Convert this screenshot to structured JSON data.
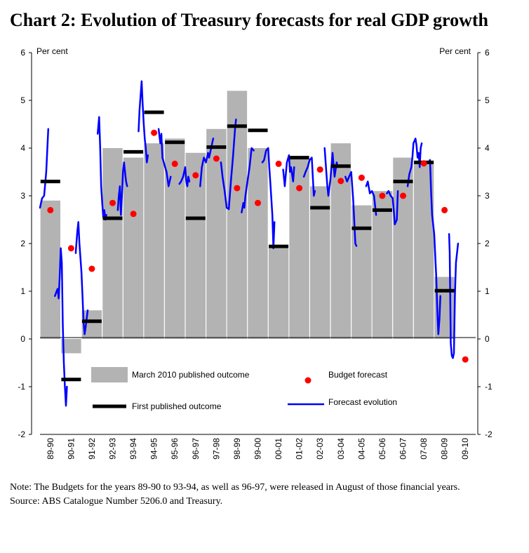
{
  "title": "Chart 2:  Evolution of Treasury forecasts for real GDP growth",
  "note": "Note: The Budgets for the years 89-90 to 93-94, as well as 96-97, were released in August of those financial years.",
  "source": "Source:  ABS Catalogue Number 5206.0 and Treasury.",
  "colors": {
    "bar": "#b3b3b3",
    "first_published": "#000000",
    "budget_forecast": "#ff0000",
    "forecast_evolution": "#0000ff"
  },
  "chart_data": {
    "type": "bar",
    "ylabel_left": "Per cent",
    "ylabel_right": "Per cent",
    "ylim": [
      -2,
      6
    ],
    "yticks": [
      -2,
      -1,
      0,
      1,
      2,
      3,
      4,
      5,
      6
    ],
    "grid": false,
    "legend_position": "bottom",
    "categories": [
      "89-90",
      "90-91",
      "91-92",
      "92-93",
      "93-94",
      "94-95",
      "95-96",
      "96-97",
      "97-98",
      "98-99",
      "99-00",
      "00-01",
      "01-02",
      "02-03",
      "03-04",
      "04-05",
      "05-06",
      "06-07",
      "07-08",
      "08-09",
      "09-10"
    ],
    "series": [
      {
        "name": "March 2010 published outcome",
        "kind": "bar",
        "values": [
          2.9,
          -0.3,
          0.6,
          4.0,
          3.8,
          4.1,
          4.2,
          3.9,
          4.4,
          5.2,
          4.0,
          1.9,
          3.8,
          3.2,
          4.1,
          2.8,
          3.1,
          3.8,
          3.7,
          1.3,
          null
        ]
      },
      {
        "name": "First published outcome",
        "kind": "dash",
        "values": [
          3.3,
          -0.85,
          0.37,
          2.53,
          3.92,
          4.75,
          4.12,
          2.53,
          4.02,
          4.46,
          4.37,
          1.94,
          3.8,
          2.75,
          3.62,
          2.32,
          2.7,
          3.3,
          3.7,
          1.01,
          null
        ]
      },
      {
        "name": "Budget forecast",
        "kind": "dot",
        "values": [
          2.7,
          1.9,
          1.47,
          2.85,
          2.62,
          4.32,
          3.67,
          3.43,
          3.78,
          3.16,
          2.85,
          3.67,
          3.16,
          3.55,
          3.31,
          3.38,
          3.0,
          3.0,
          3.68,
          2.7,
          -0.43
        ]
      },
      {
        "name": "Forecast evolution",
        "kind": "line",
        "segments": [
          [
            [
              0.0,
              2.75
            ],
            [
              0.1,
              2.95
            ],
            [
              0.2,
              3.0
            ],
            [
              0.3,
              3.5
            ],
            [
              0.4,
              4.4
            ]
          ],
          [
            [
              0.72,
              0.9
            ],
            [
              0.8,
              1.0
            ],
            [
              0.85,
              1.05
            ],
            [
              0.9,
              0.85
            ],
            [
              0.95,
              1.3
            ],
            [
              1.0,
              1.9
            ],
            [
              1.05,
              1.6
            ],
            [
              1.1,
              0.3
            ],
            [
              1.15,
              -0.5
            ],
            [
              1.2,
              -1.0
            ],
            [
              1.25,
              -1.4
            ],
            [
              1.3,
              -1.0
            ]
          ],
          [
            [
              1.72,
              1.8
            ],
            [
              1.8,
              2.25
            ],
            [
              1.85,
              2.45
            ],
            [
              1.9,
              2.0
            ],
            [
              2.0,
              1.4
            ],
            [
              2.05,
              0.9
            ],
            [
              2.1,
              0.35
            ],
            [
              2.15,
              0.1
            ],
            [
              2.2,
              0.25
            ],
            [
              2.3,
              0.6
            ]
          ],
          [
            [
              2.78,
              4.3
            ],
            [
              2.85,
              4.65
            ],
            [
              2.9,
              4.0
            ],
            [
              2.95,
              3.2
            ],
            [
              3.0,
              2.85
            ],
            [
              3.05,
              2.55
            ],
            [
              3.1,
              2.7
            ],
            [
              3.15,
              2.5
            ],
            [
              3.2,
              2.6
            ]
          ],
          [
            [
              3.75,
              2.7
            ],
            [
              3.8,
              3.0
            ],
            [
              3.85,
              3.2
            ],
            [
              3.9,
              2.6
            ],
            [
              3.95,
              3.0
            ],
            [
              4.0,
              3.5
            ],
            [
              4.05,
              3.7
            ],
            [
              4.1,
              3.5
            ],
            [
              4.15,
              3.3
            ],
            [
              4.2,
              3.2
            ]
          ],
          [
            [
              4.75,
              4.35
            ],
            [
              4.8,
              4.8
            ],
            [
              4.85,
              5.1
            ],
            [
              4.9,
              5.4
            ],
            [
              4.95,
              4.9
            ],
            [
              5.0,
              4.5
            ],
            [
              5.05,
              4.2
            ],
            [
              5.1,
              4.0
            ],
            [
              5.15,
              3.7
            ],
            [
              5.2,
              3.85
            ]
          ],
          [
            [
              5.72,
              4.4
            ],
            [
              5.8,
              4.1
            ],
            [
              5.85,
              4.3
            ],
            [
              5.9,
              3.8
            ],
            [
              6.0,
              3.65
            ],
            [
              6.1,
              3.5
            ],
            [
              6.2,
              3.2
            ],
            [
              6.3,
              3.4
            ]
          ],
          [
            [
              6.72,
              3.25
            ],
            [
              6.8,
              3.3
            ],
            [
              6.9,
              3.4
            ],
            [
              7.0,
              3.6
            ],
            [
              7.05,
              3.3
            ],
            [
              7.1,
              3.2
            ],
            [
              7.15,
              3.4
            ],
            [
              7.2,
              3.3
            ]
          ],
          [
            [
              7.72,
              3.2
            ],
            [
              7.8,
              3.6
            ],
            [
              7.9,
              3.8
            ],
            [
              8.0,
              3.7
            ],
            [
              8.1,
              3.9
            ],
            [
              8.15,
              3.8
            ],
            [
              8.2,
              3.9
            ],
            [
              8.3,
              4.1
            ],
            [
              8.35,
              4.2
            ]
          ],
          [
            [
              8.72,
              3.7
            ],
            [
              8.8,
              3.4
            ],
            [
              8.9,
              3.1
            ],
            [
              9.0,
              2.75
            ],
            [
              9.1,
              2.72
            ],
            [
              9.2,
              3.3
            ],
            [
              9.3,
              3.8
            ],
            [
              9.4,
              4.4
            ],
            [
              9.45,
              4.6
            ]
          ],
          [
            [
              9.72,
              2.65
            ],
            [
              9.8,
              2.85
            ],
            [
              9.85,
              2.75
            ],
            [
              9.9,
              3.0
            ],
            [
              10.0,
              3.3
            ],
            [
              10.1,
              3.6
            ],
            [
              10.2,
              4.0
            ],
            [
              10.3,
              3.95
            ]
          ],
          [
            [
              10.72,
              3.7
            ],
            [
              10.8,
              3.75
            ],
            [
              10.9,
              3.95
            ],
            [
              11.0,
              4.0
            ],
            [
              11.05,
              3.6
            ],
            [
              11.1,
              3.3
            ],
            [
              11.2,
              2.6
            ],
            [
              11.25,
              1.9
            ],
            [
              11.3,
              2.45
            ]
          ],
          [
            [
              11.72,
              3.55
            ],
            [
              11.8,
              3.2
            ],
            [
              11.9,
              3.7
            ],
            [
              12.0,
              3.85
            ],
            [
              12.05,
              3.5
            ],
            [
              12.1,
              3.6
            ],
            [
              12.2,
              3.3
            ],
            [
              12.25,
              3.6
            ]
          ],
          [
            [
              12.72,
              3.4
            ],
            [
              12.8,
              3.5
            ],
            [
              12.9,
              3.6
            ],
            [
              13.0,
              3.75
            ],
            [
              13.1,
              3.8
            ],
            [
              13.2,
              3.0
            ],
            [
              13.25,
              3.1
            ]
          ],
          [
            [
              13.72,
              4.0
            ],
            [
              13.8,
              3.5
            ],
            [
              13.85,
              3.2
            ],
            [
              13.9,
              3.0
            ],
            [
              14.0,
              3.35
            ],
            [
              14.1,
              3.9
            ],
            [
              14.2,
              3.4
            ],
            [
              14.3,
              3.7
            ],
            [
              14.35,
              3.6
            ]
          ],
          [
            [
              14.72,
              3.4
            ],
            [
              14.8,
              3.3
            ],
            [
              14.9,
              3.4
            ],
            [
              15.0,
              3.5
            ],
            [
              15.1,
              2.9
            ],
            [
              15.2,
              2.0
            ],
            [
              15.25,
              1.95
            ]
          ],
          [
            [
              15.72,
              3.2
            ],
            [
              15.8,
              3.3
            ],
            [
              15.9,
              3.05
            ],
            [
              16.0,
              3.1
            ],
            [
              16.1,
              3.0
            ],
            [
              16.2,
              2.6
            ]
          ],
          [
            [
              16.72,
              3.05
            ],
            [
              16.8,
              3.1
            ],
            [
              16.9,
              3.0
            ],
            [
              17.0,
              2.95
            ],
            [
              17.05,
              2.7
            ],
            [
              17.1,
              2.4
            ],
            [
              17.2,
              2.5
            ],
            [
              17.25,
              3.1
            ]
          ],
          [
            [
              17.72,
              3.2
            ],
            [
              17.8,
              3.45
            ],
            [
              17.9,
              3.6
            ],
            [
              17.95,
              3.8
            ],
            [
              18.0,
              4.1
            ],
            [
              18.1,
              4.2
            ],
            [
              18.15,
              4.05
            ],
            [
              18.2,
              3.8
            ],
            [
              18.25,
              3.9
            ],
            [
              18.3,
              3.6
            ],
            [
              18.35,
              4.0
            ],
            [
              18.4,
              4.1
            ]
          ],
          [
            [
              18.72,
              3.7
            ],
            [
              18.8,
              3.75
            ],
            [
              18.85,
              3.1
            ],
            [
              18.9,
              2.6
            ],
            [
              19.0,
              2.2
            ],
            [
              19.1,
              1.3
            ],
            [
              19.15,
              0.6
            ],
            [
              19.2,
              0.1
            ],
            [
              19.25,
              0.4
            ],
            [
              19.3,
              0.9
            ]
          ],
          [
            [
              19.72,
              2.2
            ],
            [
              19.75,
              1.8
            ],
            [
              19.8,
              -0.1
            ],
            [
              19.85,
              -0.35
            ],
            [
              19.9,
              -0.4
            ],
            [
              19.95,
              -0.3
            ],
            [
              20.0,
              0.9
            ],
            [
              20.05,
              1.6
            ],
            [
              20.1,
              1.8
            ],
            [
              20.15,
              2.0
            ]
          ]
        ]
      }
    ]
  }
}
